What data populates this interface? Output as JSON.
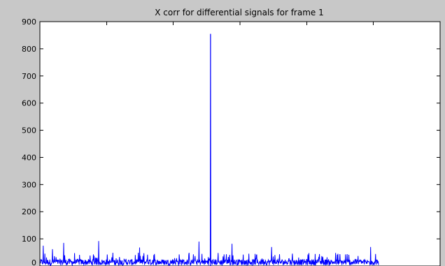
{
  "chart_data": {
    "type": "line",
    "title": "X corr for differential signals for  frame 1",
    "xlabel": "",
    "ylabel": "",
    "ylim": [
      0,
      900
    ],
    "yticks": [
      0,
      100,
      200,
      300,
      400,
      500,
      600,
      700,
      800,
      900
    ],
    "ytick_labels": [
      "0",
      "100",
      "200",
      "300",
      "400",
      "500",
      "600",
      "700",
      "800",
      "900"
    ],
    "x_tick_labels": [],
    "grid": false,
    "colors": {
      "line": "#0000ff",
      "axes_bg": "#ffffff",
      "figure_bg": "#c8c8c8"
    },
    "series": [
      {
        "name": "",
        "samples": 1025,
        "peak_index": 515,
        "peak_value": 855,
        "noise_typical_max": 50,
        "noise_spikes": [
          {
            "index": 8,
            "value": 75
          },
          {
            "index": 36,
            "value": 62
          },
          {
            "index": 70,
            "value": 85
          },
          {
            "index": 176,
            "value": 92
          },
          {
            "index": 300,
            "value": 68
          },
          {
            "index": 480,
            "value": 90
          },
          {
            "index": 580,
            "value": 82
          },
          {
            "index": 700,
            "value": 70
          },
          {
            "index": 1000,
            "value": 70
          }
        ]
      }
    ]
  }
}
